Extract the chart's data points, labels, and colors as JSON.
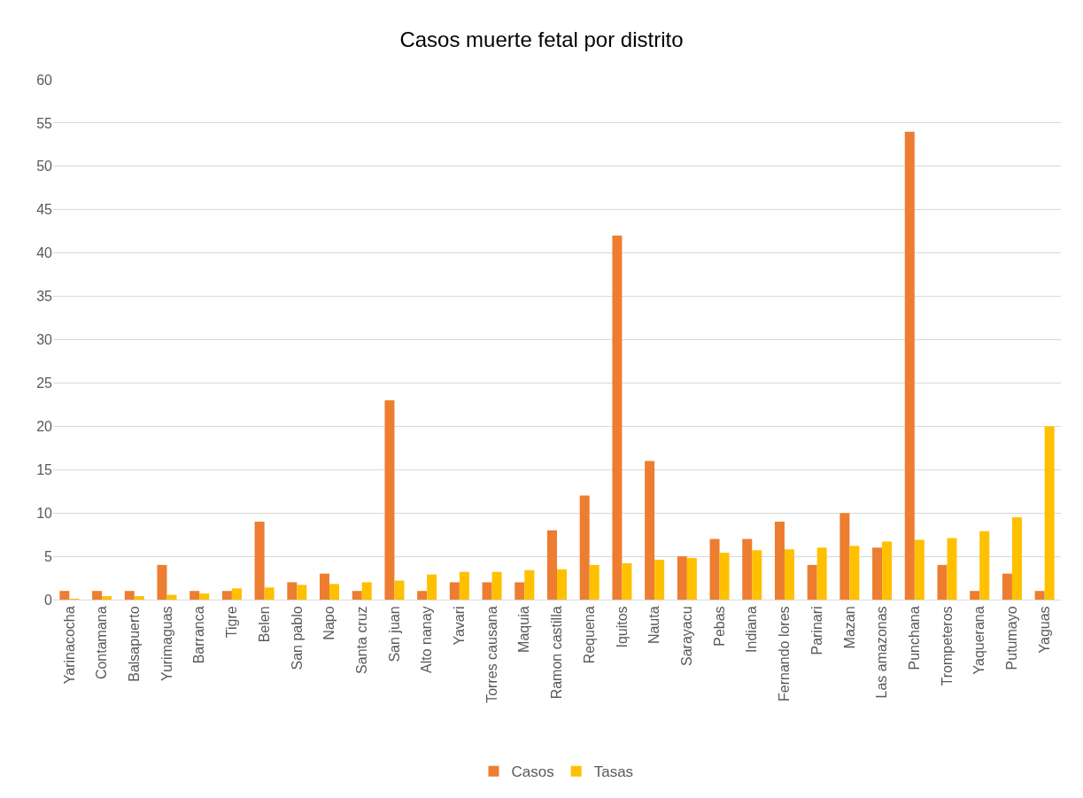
{
  "chart_data": {
    "type": "bar",
    "title": "Casos muerte fetal por distrito",
    "categories": [
      "Yarinacocha",
      "Contamana",
      "Balsapuerto",
      "Yurimaguas",
      "Barranca",
      "Tigre",
      "Belen",
      "San pablo",
      "Napo",
      "Santa cruz",
      "San juan",
      "Alto nanay",
      "Yavari",
      "Torres causana",
      "Maquia",
      "Ramon castilla",
      "Requena",
      "Iquitos",
      "Nauta",
      "Sarayacu",
      "Pebas",
      "Indiana",
      "Fernando lores",
      "Parinari",
      "Mazan",
      "Las amazonas",
      "Punchana",
      "Trompeteros",
      "Yaquerana",
      "Putumayo",
      "Yaguas"
    ],
    "series": [
      {
        "name": "Casos",
        "color": "#ed7d31",
        "values": [
          1,
          1,
          1,
          4,
          1,
          1,
          9,
          2,
          3,
          1,
          23,
          1,
          2,
          2,
          2,
          8,
          12,
          42,
          16,
          5,
          7,
          7,
          9,
          4,
          10,
          6,
          54,
          4,
          1,
          3,
          1
        ]
      },
      {
        "name": "Tasas",
        "color": "#ffc000",
        "values": [
          0.1,
          0.4,
          0.4,
          0.55,
          0.7,
          1.3,
          1.4,
          1.7,
          1.8,
          2.0,
          2.2,
          2.9,
          3.2,
          3.2,
          3.4,
          3.5,
          4.0,
          4.2,
          4.6,
          4.8,
          5.4,
          5.7,
          5.8,
          6.0,
          6.2,
          6.7,
          6.9,
          7.1,
          7.9,
          9.5,
          20
        ]
      }
    ],
    "ylim": [
      0,
      60
    ],
    "yticks": [
      0,
      5,
      10,
      15,
      20,
      25,
      30,
      35,
      40,
      45,
      50,
      55,
      60
    ],
    "grid": "y",
    "legend": "bottom"
  }
}
